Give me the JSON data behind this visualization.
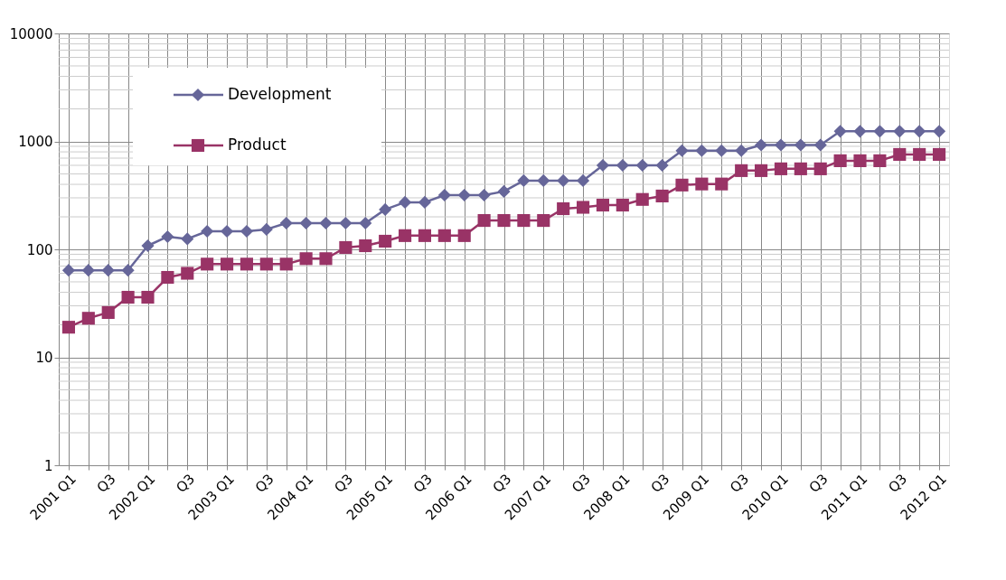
{
  "chart_data": {
    "type": "line",
    "categories": [
      "2001 Q1",
      null,
      "Q3",
      null,
      "2002 Q1",
      null,
      "Q3",
      null,
      "2003 Q1",
      null,
      "Q3",
      null,
      "2004 Q1",
      null,
      "Q3",
      null,
      "2005 Q1",
      null,
      "Q3",
      null,
      "2006 Q1",
      null,
      "Q3",
      null,
      "2007 Q1",
      null,
      "Q3",
      null,
      "2008 Q1",
      null,
      "Q3",
      null,
      "2009 Q1",
      null,
      "Q3",
      null,
      "2010 Q1",
      null,
      "Q3",
      null,
      "2011 Q1",
      null,
      "Q3",
      null,
      "2012 Q1"
    ],
    "series": [
      {
        "name": "Development",
        "color": "#666699",
        "marker": "diamond",
        "values": [
          64,
          64,
          64,
          64,
          108,
          131,
          125,
          147,
          147,
          147,
          153,
          175,
          175,
          175,
          175,
          175,
          234,
          273,
          273,
          318,
          318,
          318,
          344,
          433,
          433,
          433,
          433,
          600,
          600,
          600,
          600,
          820,
          820,
          820,
          820,
          925,
          925,
          925,
          925,
          1240,
          1240,
          1240,
          1240,
          1240,
          1240
        ]
      },
      {
        "name": "Product",
        "color": "#993366",
        "marker": "square",
        "values": [
          19,
          23,
          26,
          36,
          36,
          55,
          60,
          73,
          73,
          73,
          73,
          73,
          82,
          82,
          104,
          108,
          119,
          134,
          134,
          134,
          134,
          185,
          185,
          185,
          185,
          238,
          245,
          257,
          257,
          290,
          312,
          394,
          403,
          403,
          536,
          536,
          557,
          557,
          557,
          662,
          662,
          662,
          757,
          757,
          757
        ]
      }
    ],
    "log": true,
    "ylim": [
      1,
      10000
    ],
    "yticks": [
      1,
      10,
      100,
      1000,
      10000
    ],
    "grid": true,
    "legend": "top left",
    "line_style": "solid"
  }
}
